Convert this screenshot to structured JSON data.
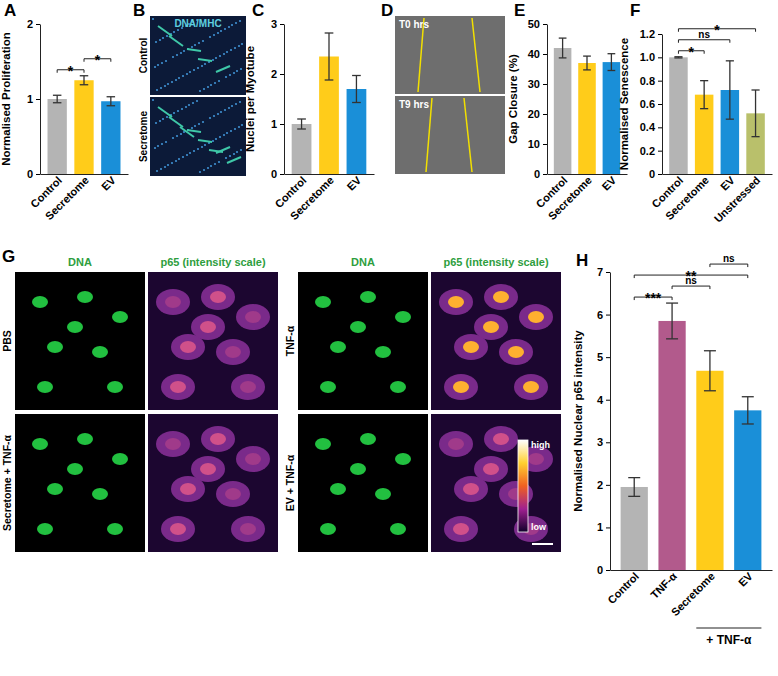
{
  "chart_data": [
    {
      "type": "bar",
      "title": "A",
      "ylabel": "Normalised Proliferation",
      "categories": [
        "Control",
        "Secretome",
        "EV"
      ],
      "values": [
        1.0,
        1.25,
        0.97
      ],
      "errors": [
        0.05,
        0.06,
        0.06
      ],
      "colors": [
        "#b4b4b4",
        "#ffcc1a",
        "#1a8fd8"
      ],
      "ylim": [
        0,
        2
      ],
      "yticks": [
        0,
        1,
        2
      ],
      "significance": [
        {
          "from": 0,
          "to": 1,
          "label": "*"
        },
        {
          "from": 1,
          "to": 2,
          "label": "*"
        }
      ]
    },
    {
      "type": "bar",
      "title": "C",
      "ylabel": "Nuclei per Myotube",
      "categories": [
        "Control",
        "Secretome",
        "EV"
      ],
      "values": [
        1.0,
        2.35,
        1.7
      ],
      "errors": [
        0.1,
        0.47,
        0.27
      ],
      "colors": [
        "#b4b4b4",
        "#ffcc1a",
        "#1a8fd8"
      ],
      "ylim": [
        0,
        3
      ],
      "yticks": [
        0,
        1,
        2,
        3
      ]
    },
    {
      "type": "bar",
      "title": "E",
      "ylabel": "Gap Closure (%)",
      "categories": [
        "Control",
        "Secretome",
        "EV"
      ],
      "values": [
        42,
        37,
        37.3
      ],
      "errors": [
        3.3,
        2.3,
        2.8
      ],
      "colors": [
        "#b4b4b4",
        "#ffcc1a",
        "#1a8fd8"
      ],
      "ylim": [
        0,
        50
      ],
      "yticks": [
        0,
        10,
        20,
        30,
        40,
        50
      ]
    },
    {
      "type": "bar",
      "title": "F",
      "ylabel": "Normalised Senescence",
      "categories": [
        "Control",
        "Secretome",
        "EV",
        "Unstressed"
      ],
      "values": [
        1.0,
        0.68,
        0.72,
        0.52
      ],
      "errors": [
        0.005,
        0.12,
        0.25,
        0.2
      ],
      "colors": [
        "#b4b4b4",
        "#ffcc1a",
        "#1a8fd8",
        "#b9c06b"
      ],
      "ylim": [
        0,
        1.2
      ],
      "yticks": [
        0,
        0.2,
        0.4,
        0.6,
        0.8,
        {
          "value": 1,
          "label": "1.0"
        },
        1.2
      ],
      "significance": [
        {
          "from": 0,
          "to": 1,
          "label": "*"
        },
        {
          "from": 0,
          "to": 2,
          "label": "ns"
        },
        {
          "from": 0,
          "to": 3,
          "label": "*"
        }
      ]
    },
    {
      "type": "bar",
      "title": "H",
      "ylabel": "Normalised Nuclear p65 intensity",
      "categories": [
        "Control",
        "TNF-α",
        "Secretome",
        "EV"
      ],
      "values": [
        1.95,
        5.85,
        4.68,
        3.75
      ],
      "errors": [
        0.22,
        0.42,
        0.47,
        0.32
      ],
      "colors": [
        "#b4b4b4",
        "#b25a8c",
        "#ffcc1a",
        "#1a8fd8"
      ],
      "ylim": [
        0,
        7
      ],
      "yticks": [
        0,
        1,
        2,
        3,
        4,
        5,
        6,
        7
      ],
      "significance": [
        {
          "from": 0,
          "to": 1,
          "label": "***"
        },
        {
          "from": 1,
          "to": 2,
          "label": "ns"
        },
        {
          "from": 0,
          "to": 3,
          "label": "**"
        },
        {
          "from": 2,
          "to": 3,
          "label": "ns"
        }
      ],
      "group": {
        "label": "+ TNF-α",
        "from": 2,
        "to": 3
      }
    }
  ],
  "images": [
    {
      "title": "B",
      "header": "DNA/MHC",
      "rows": [
        "Control",
        "Secretome"
      ]
    },
    {
      "title": "D",
      "rows": [
        "T0 hrs",
        "T9 hrs"
      ]
    },
    {
      "title": "G",
      "columns": [
        "DNA",
        "p65 (intensity scale)",
        "DNA",
        "p65 (intensity scale)"
      ],
      "rows": [
        "PBS",
        "TNF-α",
        "Secretome + TNF-α",
        "EV + TNF-α"
      ],
      "colorbar": [
        "high",
        "low"
      ]
    }
  ]
}
